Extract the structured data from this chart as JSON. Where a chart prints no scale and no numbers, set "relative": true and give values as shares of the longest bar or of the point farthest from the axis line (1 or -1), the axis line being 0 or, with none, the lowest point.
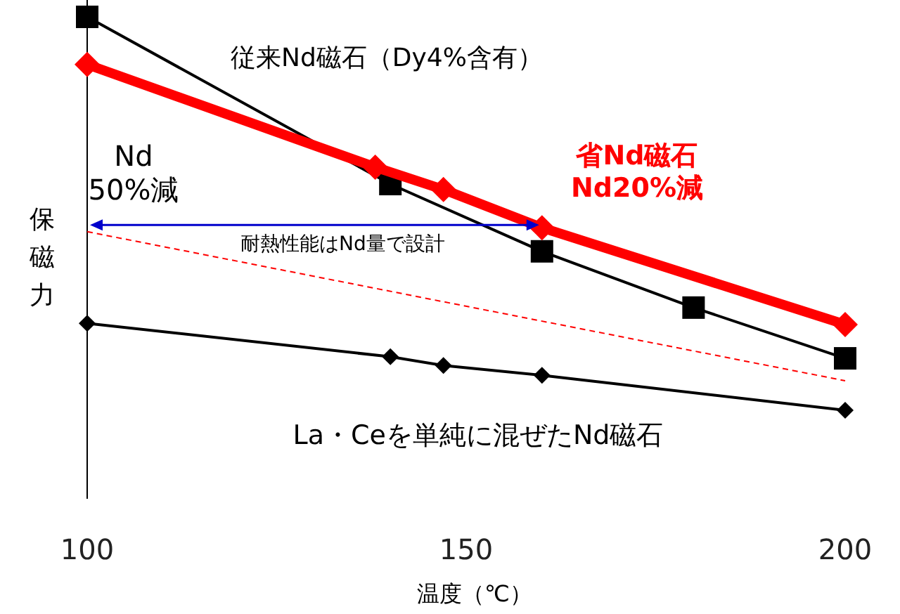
{
  "chart_data": {
    "type": "line",
    "relative": true,
    "xlabel": "温度（℃）",
    "ylabel": "保磁力",
    "xlim": [
      100,
      200
    ],
    "xticks": [
      100,
      150,
      200
    ],
    "grid": false,
    "series": [
      {
        "name": "従来Nd磁石（Dy4%含有）",
        "color": "#000000",
        "marker": "square",
        "x": [
          100,
          140,
          160,
          180,
          200
        ],
        "values": [
          1.0,
          0.575,
          0.404,
          0.261,
          0.132
        ]
      },
      {
        "name": "省Nd磁石\nNd20%減",
        "color": "#ff0000",
        "marker": "diamond",
        "x": [
          100,
          138,
          147,
          160,
          200
        ],
        "values": [
          0.879,
          0.618,
          0.561,
          0.464,
          0.218
        ]
      },
      {
        "name": "La・Ceを単純に混ぜたNd磁石",
        "color": "#000000",
        "marker": "diamond",
        "x": [
          100,
          140,
          147,
          160,
          200
        ],
        "values": [
          0.221,
          0.136,
          0.114,
          0.089,
          0.0
        ]
      },
      {
        "color": "#ff0000",
        "marker": "none",
        "line_style": "dashed",
        "x": [
          100,
          200
        ],
        "values": [
          0.454,
          0.075
        ]
      }
    ],
    "annotations": [
      "Nd\n50%減",
      "耐熱性能はNd量で設計"
    ]
  }
}
